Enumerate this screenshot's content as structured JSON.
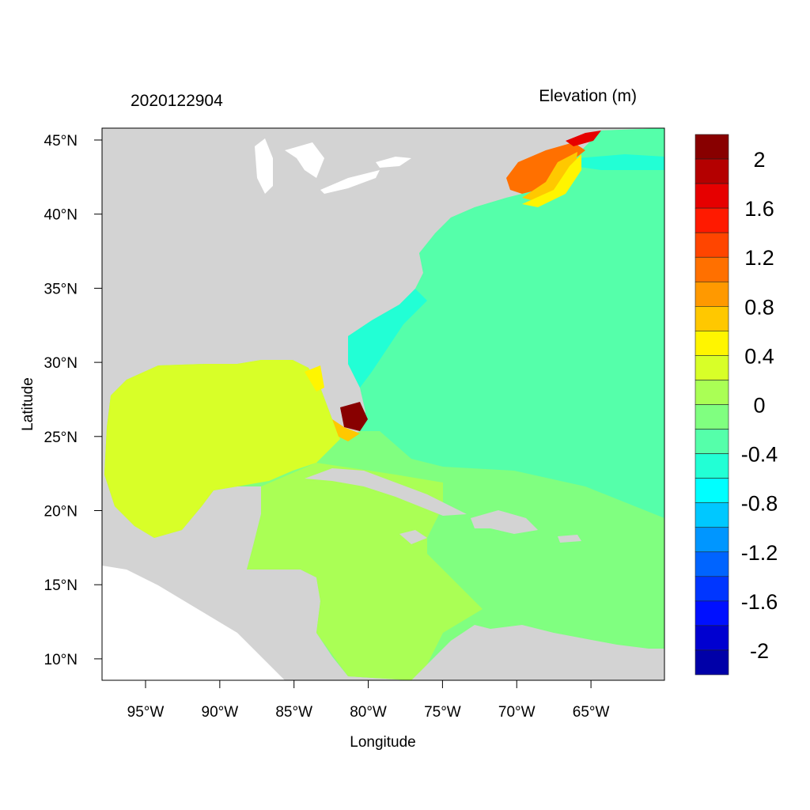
{
  "header": {
    "timestamp": "2020122904",
    "variable_title": "Elevation (m)"
  },
  "axes": {
    "xlabel": "Longitude",
    "ylabel": "Latitude",
    "lon_ticks": [
      "95°W",
      "90°W",
      "85°W",
      "80°W",
      "75°W",
      "70°W",
      "65°W"
    ],
    "lon_values": [
      -95,
      -90,
      -85,
      -80,
      -75,
      -70,
      -65
    ],
    "lat_ticks": [
      "45°N",
      "40°N",
      "35°N",
      "30°N",
      "25°N",
      "20°N",
      "15°N",
      "10°N"
    ],
    "lat_values": [
      45,
      40,
      35,
      30,
      25,
      20,
      15,
      10
    ],
    "lon_range": [
      -97.9,
      -60.05
    ],
    "lat_range": [
      8.56,
      45.8
    ]
  },
  "colorbar": {
    "labels": [
      "2",
      "1.6",
      "1.2",
      "0.8",
      "0.4",
      "0",
      "-0.4",
      "-0.8",
      "-1.2",
      "-1.6",
      "-2"
    ],
    "label_values": [
      2,
      1.6,
      1.2,
      0.8,
      0.4,
      0,
      -0.4,
      -0.8,
      -1.2,
      -1.6,
      -2
    ],
    "range": [
      -2.2,
      2.2
    ],
    "step": 0.2,
    "colors_top_to_bottom": [
      "#880000",
      "#b40000",
      "#e60000",
      "#ff1a00",
      "#ff4500",
      "#ff7000",
      "#ff9900",
      "#ffc800",
      "#fff500",
      "#d8ff28",
      "#aaff55",
      "#80ff80",
      "#55ffaa",
      "#22ffd5",
      "#00ffff",
      "#00c8ff",
      "#0096ff",
      "#0064ff",
      "#0036ff",
      "#0010ff",
      "#0000d0",
      "#0000a8"
    ]
  },
  "map_colors": {
    "land": "#d3d3d3",
    "no_data": "#ffffff",
    "atlantic": "#55ffaa",
    "gulf": "#d8ff28",
    "caribbean_west": "#aaff55",
    "caribbean_east": "#80ff80",
    "nearshore": "#22ffd5",
    "max": "#880000"
  }
}
